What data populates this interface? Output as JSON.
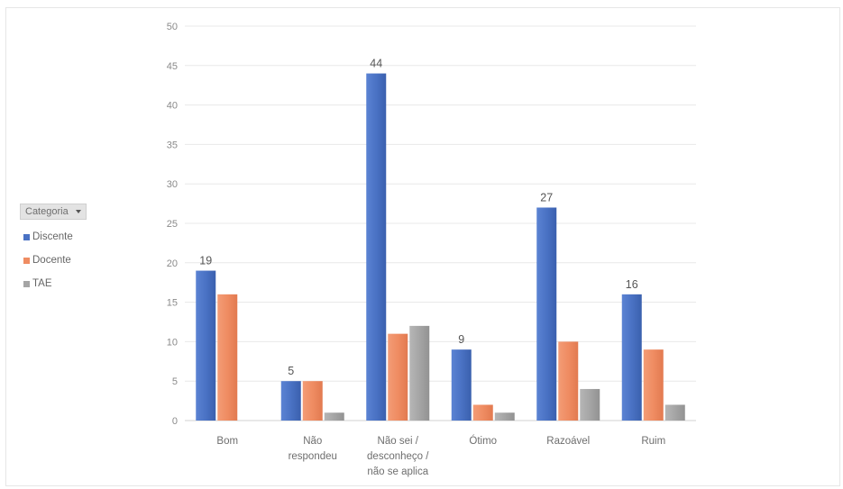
{
  "legend": {
    "filter_label": "Categoria",
    "filter_icon": "dropdown-arrow-icon"
  },
  "chart_data": {
    "type": "bar",
    "categories": [
      [
        "Bom"
      ],
      [
        "Não",
        "respondeu"
      ],
      [
        "Não sei /",
        "desconheço /",
        "não se aplica"
      ],
      [
        "Ótimo"
      ],
      [
        "Razoável"
      ],
      [
        "Ruim"
      ]
    ],
    "series": [
      {
        "name": "Discente",
        "color": "#4a72c4",
        "values": [
          19,
          5,
          44,
          9,
          27,
          16
        ]
      },
      {
        "name": "Docente",
        "color": "#ef8c62",
        "values": [
          16,
          5,
          11,
          2,
          10,
          9
        ]
      },
      {
        "name": "TAE",
        "color": "#a5a5a5",
        "values": [
          0,
          1,
          12,
          1,
          4,
          2
        ]
      }
    ],
    "data_labels_series": "Discente",
    "ylim": [
      0,
      50
    ],
    "yticks": [
      0,
      5,
      10,
      15,
      20,
      25,
      30,
      35,
      40,
      45,
      50
    ],
    "grid": true,
    "legend_position": "left"
  }
}
